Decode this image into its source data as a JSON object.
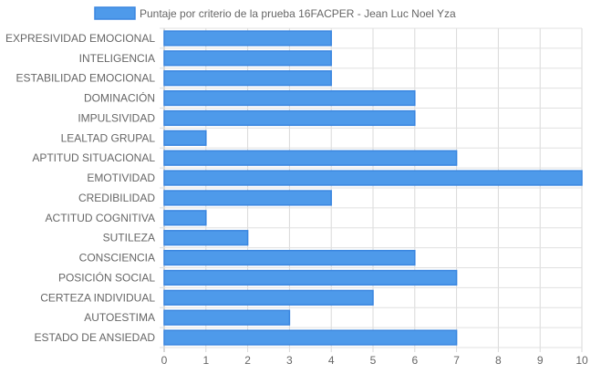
{
  "chart_data": {
    "type": "bar",
    "orientation": "horizontal",
    "categories": [
      "EXPRESIVIDAD EMOCIONAL",
      "INTELIGENCIA",
      "ESTABILIDAD EMOCIONAL",
      "DOMINACIÓN",
      "IMPULSIVIDAD",
      "LEALTAD GRUPAL",
      "APTITUD SITUACIONAL",
      "EMOTIVIDAD",
      "CREDIBILIDAD",
      "ACTITUD COGNITIVA",
      "SUTILEZA",
      "CONSCIENCIA",
      "POSICIÓN SOCIAL",
      "CERTEZA INDIVIDUAL",
      "AUTOESTIMA",
      "ESTADO DE ANSIEDAD"
    ],
    "series": [
      {
        "name": "Puntaje por criterio de la prueba 16FACPER - Jean Luc Noel Yza",
        "values": [
          4,
          4,
          4,
          6,
          6,
          1,
          7,
          10,
          4,
          1,
          2,
          6,
          7,
          5,
          3,
          7
        ],
        "color": "#4e9aea",
        "border_color": "#3a86e0"
      }
    ],
    "x_ticks": [
      "0",
      "1",
      "2",
      "3",
      "4",
      "5",
      "6",
      "7",
      "8",
      "9",
      "10"
    ],
    "xlim": [
      0,
      10
    ],
    "grid": true,
    "legend_position": "top"
  }
}
